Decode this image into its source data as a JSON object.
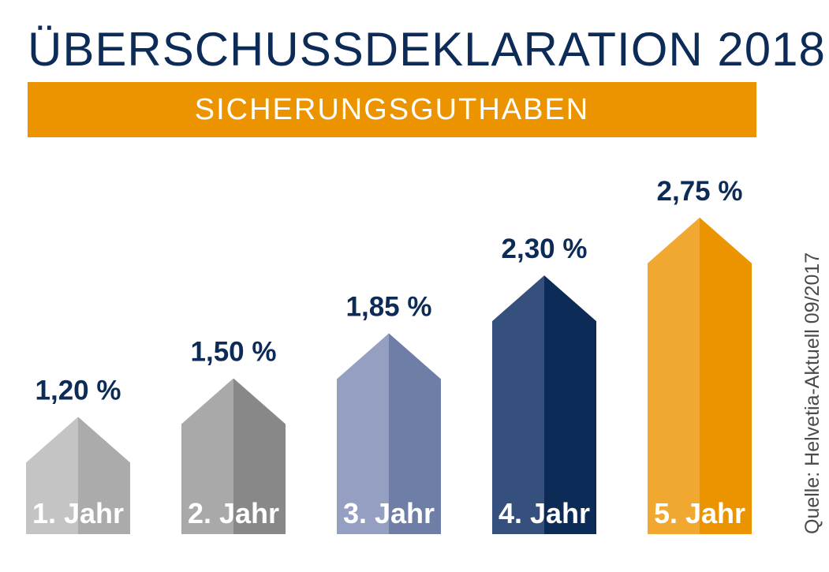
{
  "chart_data": {
    "type": "bar",
    "title": "ÜBERSCHUSSDEKLARATION 2018",
    "subtitle": "SICHERUNGSGUTHABEN",
    "categories": [
      "1. Jahr",
      "2. Jahr",
      "3. Jahr",
      "4. Jahr",
      "5. Jahr"
    ],
    "values": [
      1.2,
      1.5,
      1.85,
      2.3,
      2.75
    ],
    "value_labels": [
      "1,20 %",
      "1,50 %",
      "1,85 %",
      "2,30 %",
      "2,75 %"
    ],
    "unit": "%",
    "bar_colors": [
      {
        "left": "#c4c4c4",
        "right": "#ababab"
      },
      {
        "left": "#a9a9a9",
        "right": "#888888"
      },
      {
        "left": "#949fc2",
        "right": "#6e7ea7"
      },
      {
        "left": "#36507e",
        "right": "#0d2b57"
      },
      {
        "left": "#f0a830",
        "right": "#ec9400"
      }
    ],
    "label_color": "#0d2b57",
    "category_label_color": "#ffffff",
    "grid": false,
    "legend": "none"
  },
  "source": "Quelle: Helvetia-Aktuell 09/2017",
  "colors": {
    "title": "#0d2b57",
    "banner": "#ec9400",
    "banner_text": "#ffffff"
  }
}
